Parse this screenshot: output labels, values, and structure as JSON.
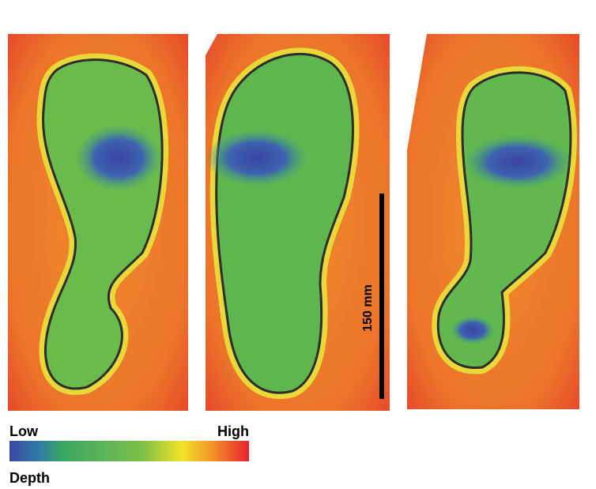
{
  "colorbar": {
    "low": "Low",
    "high": "High",
    "title": "Depth"
  },
  "scale_bar": {
    "label": "150 mm"
  }
}
